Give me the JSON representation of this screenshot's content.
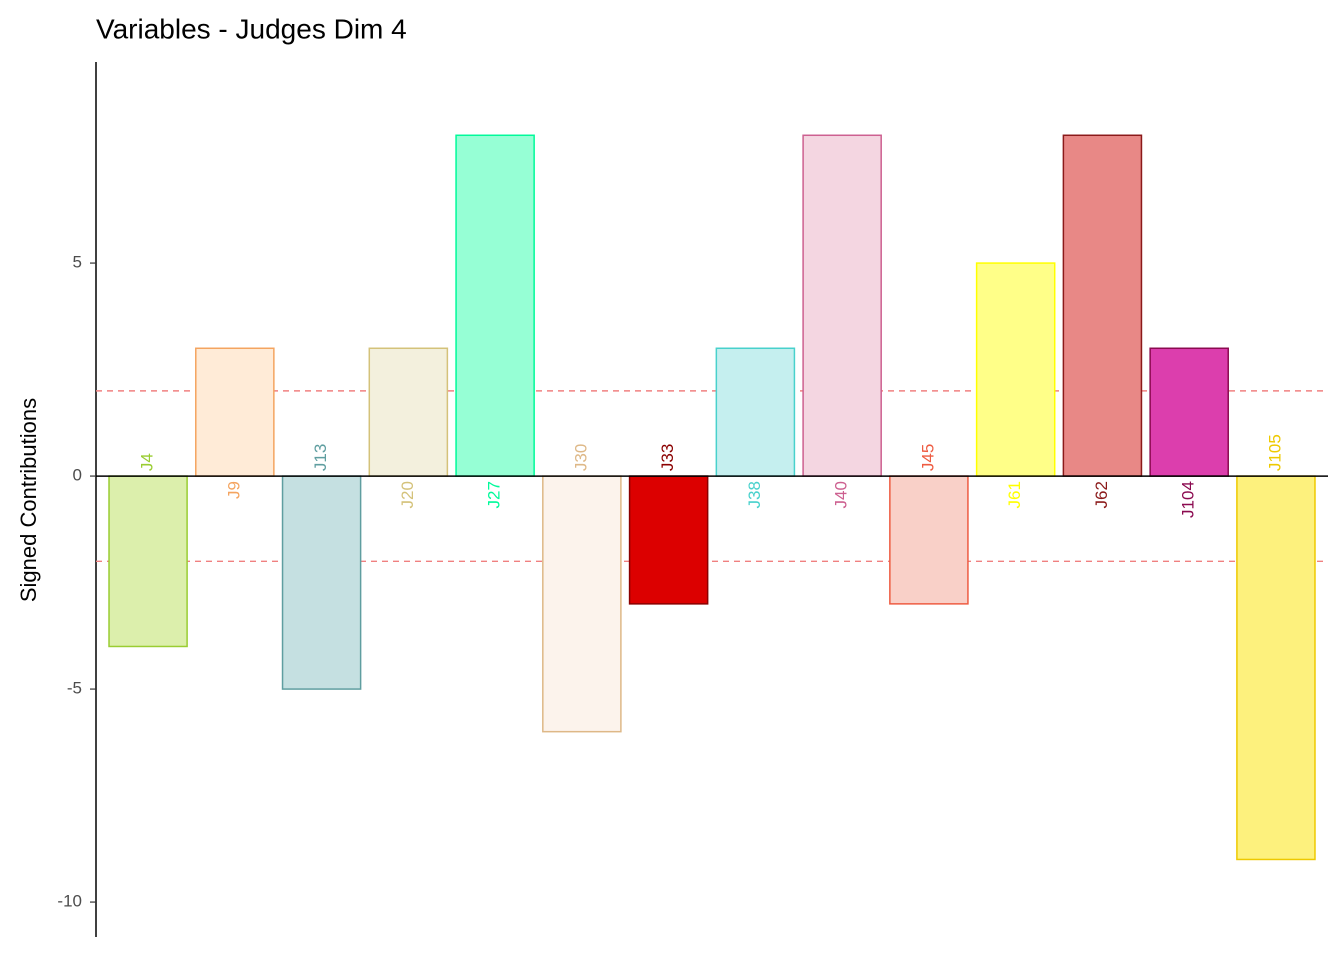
{
  "chart_data": {
    "type": "bar",
    "title": "Variables - Judges Dim 4",
    "y_label": "Signed Contributions",
    "categories": [
      "J4",
      "J9",
      "J13",
      "J20",
      "J27",
      "J30",
      "J33",
      "J38",
      "J40",
      "J45",
      "J61",
      "J62",
      "J104",
      "J105"
    ],
    "values": [
      -4,
      3,
      -5,
      3,
      8,
      -6,
      -3,
      3,
      8,
      -3,
      5,
      8,
      3,
      -9
    ],
    "colors": [
      "#dcefac",
      "#ffebd7",
      "#c5e0e1",
      "#f3f0dd",
      "#96ffd5",
      "#fcf3ec",
      "#dc0000",
      "#c5efef",
      "#f4d6e1",
      "#f9d0c8",
      "#ffff88",
      "#e88886",
      "#dc3ead",
      "#fdf17d"
    ],
    "border_colors": [
      "#9acd32",
      "#f4a460",
      "#5f9ea0",
      "#d4c27a",
      "#00fa9a",
      "#deb887",
      "#8b0000",
      "#48d1cc",
      "#cd6090",
      "#ee5c42",
      "#ffff00",
      "#8b1a1a",
      "#8b0a50",
      "#eec900"
    ],
    "ylim": [
      -10.82,
      9.72
    ],
    "yticks": [
      -10,
      -5,
      0,
      5
    ],
    "hlines": [
      2,
      -2
    ],
    "hline_color": "#f08080"
  }
}
